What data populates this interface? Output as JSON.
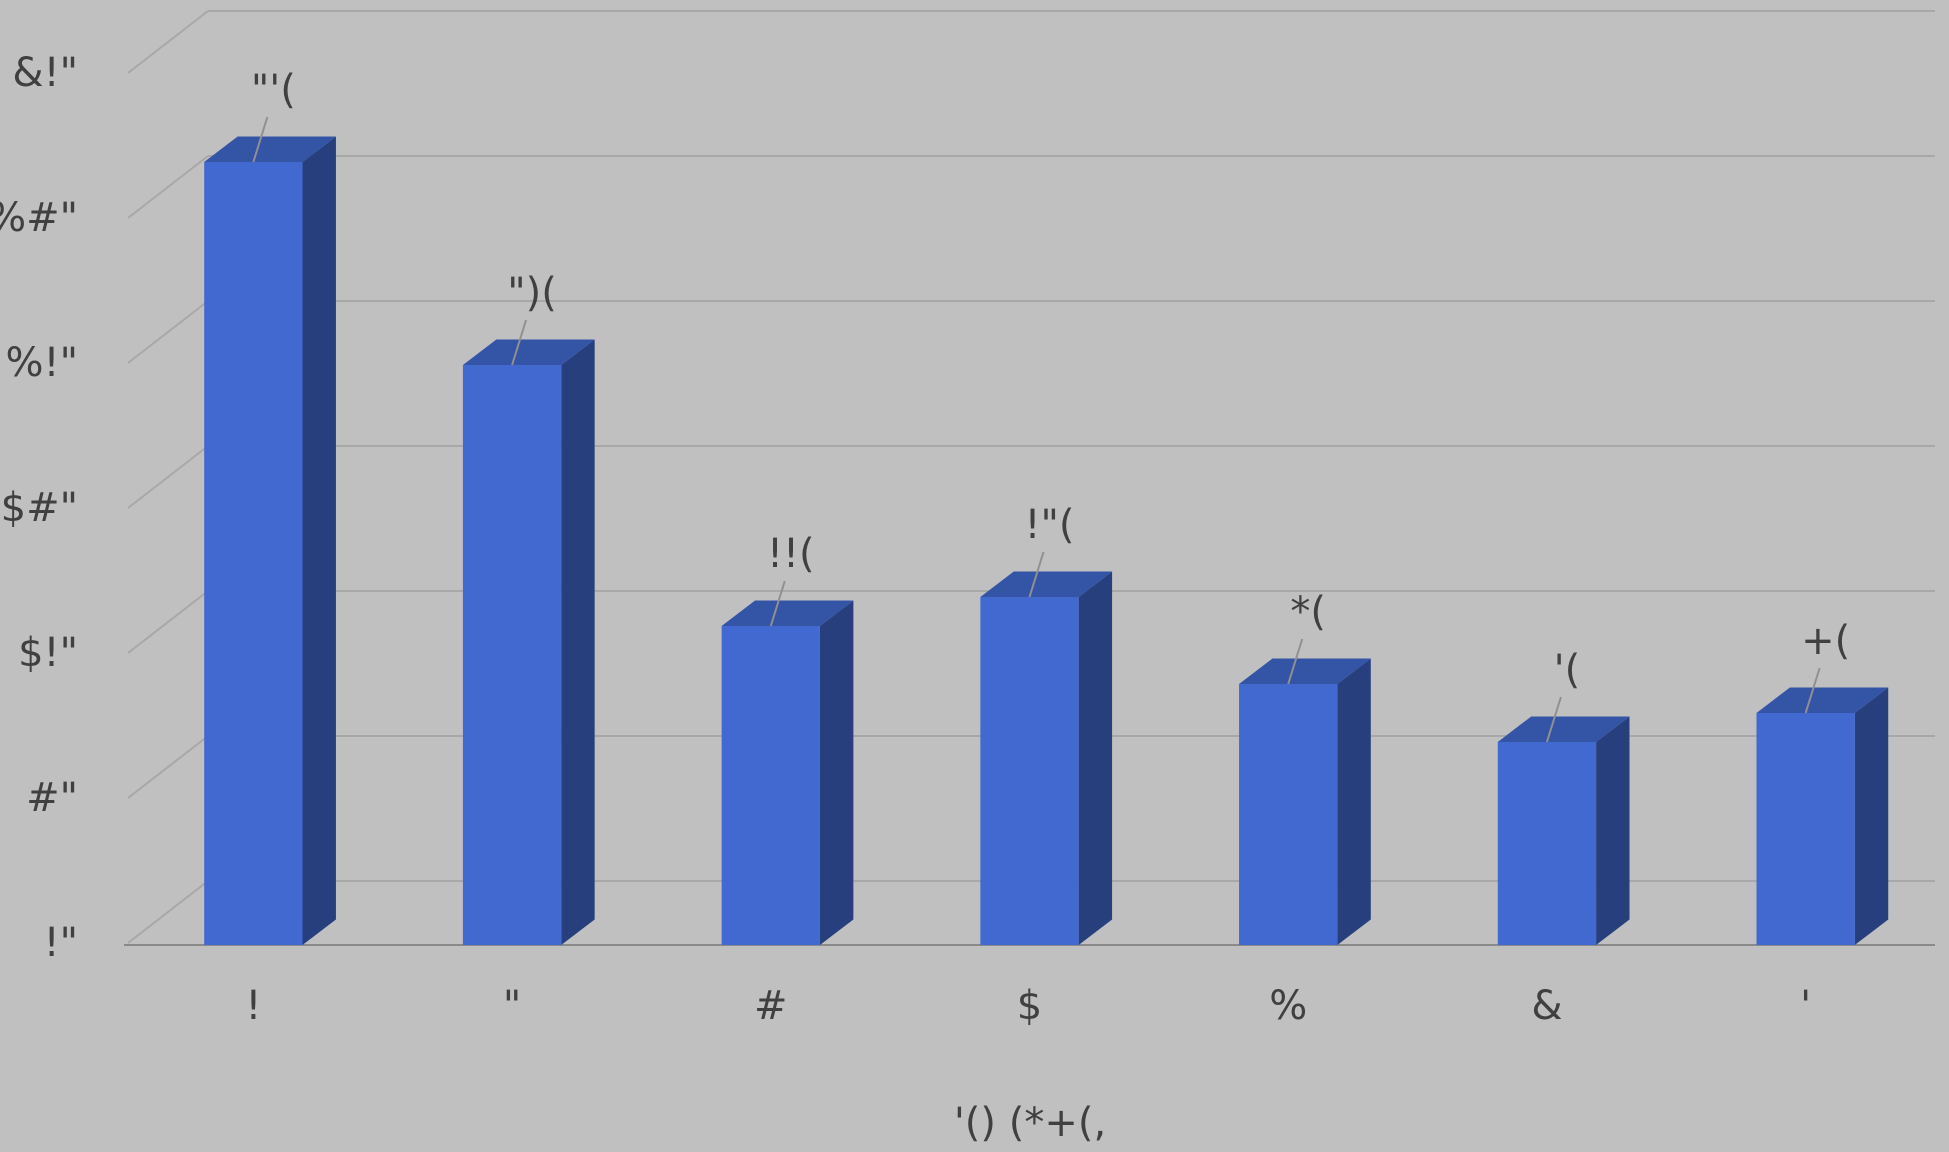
{
  "chart_data": {
    "type": "bar3d",
    "x_label": "'() (*+(,",
    "categories": [
      "!",
      "\"",
      "#",
      "$",
      "%",
      "&",
      "'"
    ],
    "values": [
      27,
      20,
      11,
      12,
      9,
      7,
      8
    ],
    "value_labels": [
      "\"'(",
      "\")(",
      "!!(",
      "!\"(",
      "*(",
      "'(",
      "+("
    ],
    "color": "#4169d0",
    "ylim": [
      0,
      30
    ],
    "yticks": [
      {
        "value": 0,
        "label": "!\""
      },
      {
        "value": 5,
        "label": "#\""
      },
      {
        "value": 10,
        "label": "$!\""
      },
      {
        "value": 15,
        "label": "$#\""
      },
      {
        "value": 20,
        "label": "%!\""
      },
      {
        "value": 25,
        "label": "%#\""
      },
      {
        "value": 30,
        "label": "&!\""
      }
    ],
    "grid": true
  }
}
